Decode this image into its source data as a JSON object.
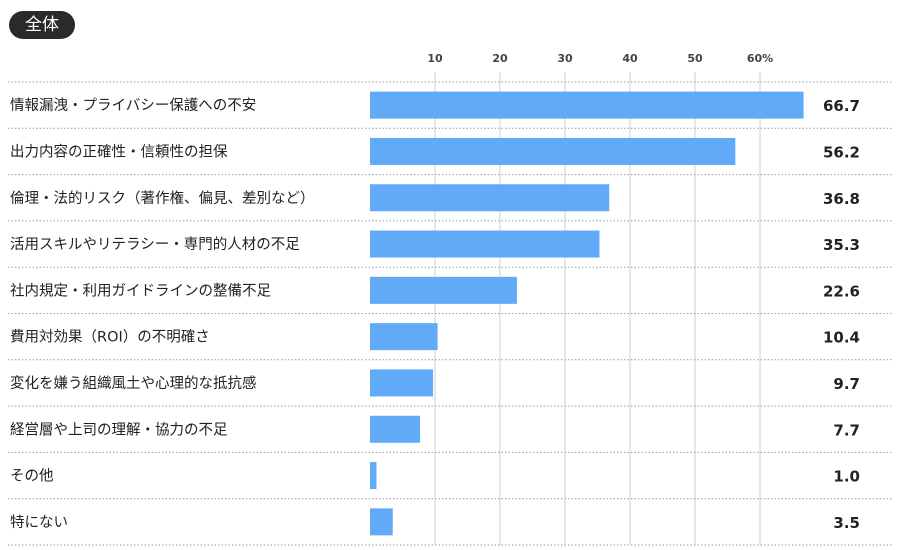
{
  "badge": "全体",
  "chart_data": {
    "type": "bar",
    "orientation": "horizontal",
    "title": "",
    "xlim": [
      0,
      70
    ],
    "ticks": [
      10,
      20,
      30,
      40,
      50,
      60
    ],
    "tick_labels": [
      "10",
      "20",
      "30",
      "40",
      "50",
      "60%"
    ],
    "grid": true,
    "bar_color": "#60aaf8",
    "categories": [
      "情報漏洩・プライバシー保護への不安",
      "出力内容の正確性・信頼性の担保",
      "倫理・法的リスク（著作権、偏見、差別など）",
      "活用スキルやリテラシー・専門的人材の不足",
      "社内規定・利用ガイドラインの整備不足",
      "費用対効果（ROI）の不明確さ",
      "変化を嫌う組織風土や心理的な抵抗感",
      "経営層や上司の理解・協力の不足",
      "その他",
      "特にない"
    ],
    "values": [
      66.7,
      56.2,
      36.8,
      35.3,
      22.6,
      10.4,
      9.7,
      7.7,
      1.0,
      3.5
    ],
    "value_labels": [
      "66.7",
      "56.2",
      "36.8",
      "35.3",
      "22.6",
      "10.4",
      "9.7",
      "7.7",
      "1.0",
      "3.5"
    ]
  }
}
